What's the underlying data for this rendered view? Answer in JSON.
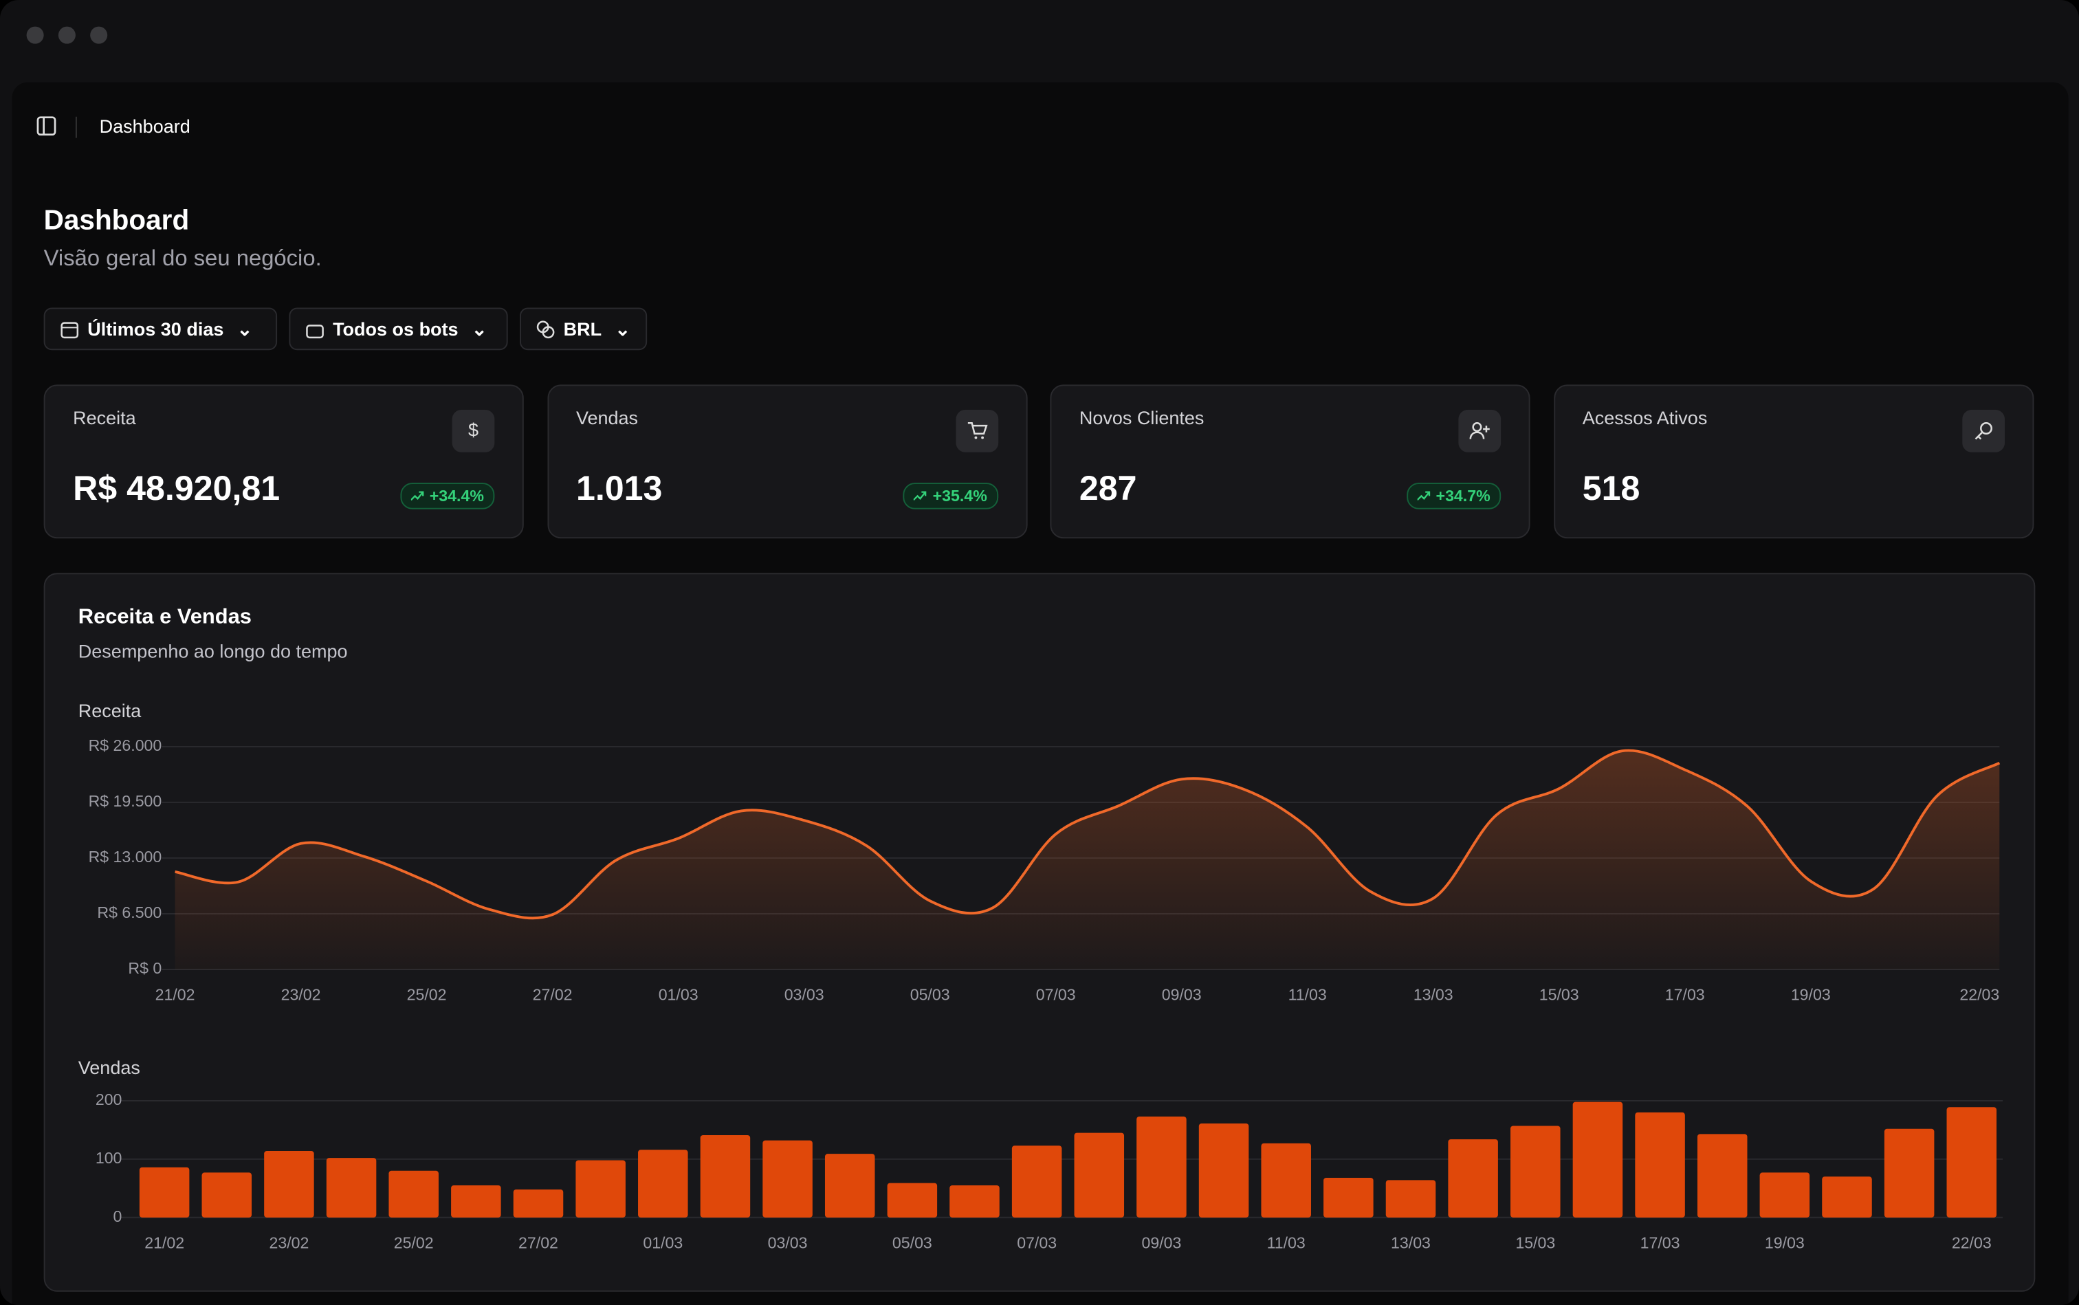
{
  "breadcrumb": "Dashboard",
  "header": {
    "title": "Dashboard",
    "subtitle": "Visão geral do seu negócio."
  },
  "filters": [
    "Últimos 30 dias",
    "Todos os bots",
    "BRL"
  ],
  "cards": [
    {
      "label": "Receita",
      "value": "R$ 48.920,81",
      "change": "+34.4%"
    },
    {
      "label": "Vendas",
      "value": "1.013",
      "change": "+35.4%"
    },
    {
      "label": "Novos Clientes",
      "value": "287",
      "change": "+34.7%"
    },
    {
      "label": "Acessos Ativos",
      "value": "518"
    }
  ],
  "chart_card": {
    "title": "Receita e Vendas",
    "subtitle": "Desempenho ao longo do tempo"
  },
  "chart_data": [
    {
      "type": "line",
      "title": "Receita",
      "color": "#f0692a",
      "categories": [
        "21/02",
        null,
        "23/02",
        null,
        "25/02",
        null,
        "27/02",
        null,
        "01/03",
        null,
        "03/03",
        null,
        "05/03",
        null,
        "07/03",
        null,
        "09/03",
        null,
        "11/03",
        null,
        "13/03",
        null,
        "15/03",
        null,
        "17/03",
        null,
        "19/03",
        null,
        null,
        "22/03"
      ],
      "values": [
        11400,
        10200,
        14700,
        13200,
        10300,
        7000,
        6400,
        12700,
        15300,
        18500,
        17400,
        14400,
        8000,
        7200,
        15800,
        19100,
        22200,
        21000,
        16600,
        9100,
        8300,
        18000,
        21100,
        25500,
        23300,
        19000,
        10300,
        9400,
        20200,
        24100
      ],
      "ylim": [
        0,
        26000
      ],
      "yticks": [
        {
          "value": 0,
          "label": "R$ 0"
        },
        {
          "value": 6500,
          "label": "R$ 6.500"
        },
        {
          "value": 13000,
          "label": "R$ 13.000"
        },
        {
          "value": 19500,
          "label": "R$ 19.500"
        },
        {
          "value": 26000,
          "label": "R$ 26.000"
        }
      ],
      "grid": true
    },
    {
      "type": "bar",
      "title": "Vendas",
      "color": "#e0480a",
      "categories": [
        "21/02",
        null,
        "23/02",
        null,
        "25/02",
        null,
        "27/02",
        null,
        "01/03",
        null,
        "03/03",
        null,
        "05/03",
        null,
        "07/03",
        null,
        "09/03",
        null,
        "11/03",
        null,
        "13/03",
        null,
        "15/03",
        null,
        "17/03",
        null,
        "19/03",
        null,
        null,
        "22/03"
      ],
      "values": [
        86,
        77,
        114,
        102,
        80,
        55,
        48,
        98,
        116,
        141,
        132,
        109,
        59,
        55,
        123,
        145,
        173,
        161,
        127,
        68,
        64,
        134,
        157,
        198,
        180,
        143,
        77,
        70,
        152,
        189
      ],
      "ylim": [
        0,
        200
      ],
      "yticks": [
        0,
        100,
        200
      ],
      "grid": true
    }
  ]
}
